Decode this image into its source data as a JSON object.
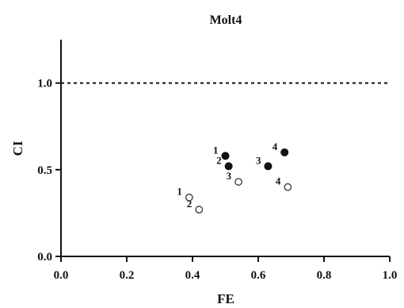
{
  "chart_data": {
    "type": "scatter",
    "title": "Molt4",
    "xlabel": "FE",
    "ylabel": "CI",
    "xlim": [
      0.0,
      1.0
    ],
    "ylim": [
      0.0,
      1.25
    ],
    "x_ticks": [
      "0.0",
      "0.2",
      "0.4",
      "0.6",
      "0.8",
      "1.0"
    ],
    "y_ticks": [
      "0.0",
      "0.5",
      "1.0"
    ],
    "reference_line": {
      "y": 1.0,
      "style": "dashed"
    },
    "grid": false,
    "series": [
      {
        "marker": "filled-circle",
        "points": [
          {
            "label": "1",
            "x": 0.5,
            "y": 0.58
          },
          {
            "label": "2",
            "x": 0.51,
            "y": 0.52
          },
          {
            "label": "3",
            "x": 0.63,
            "y": 0.52
          },
          {
            "label": "4",
            "x": 0.68,
            "y": 0.6
          }
        ]
      },
      {
        "marker": "open-circle",
        "points": [
          {
            "label": "1",
            "x": 0.39,
            "y": 0.34
          },
          {
            "label": "2",
            "x": 0.42,
            "y": 0.27
          },
          {
            "label": "3",
            "x": 0.54,
            "y": 0.43
          },
          {
            "label": "4",
            "x": 0.69,
            "y": 0.4
          }
        ]
      }
    ],
    "colors": {
      "axis": "#111111",
      "filled_marker": "#111111",
      "open_marker_stroke": "#333333"
    }
  }
}
